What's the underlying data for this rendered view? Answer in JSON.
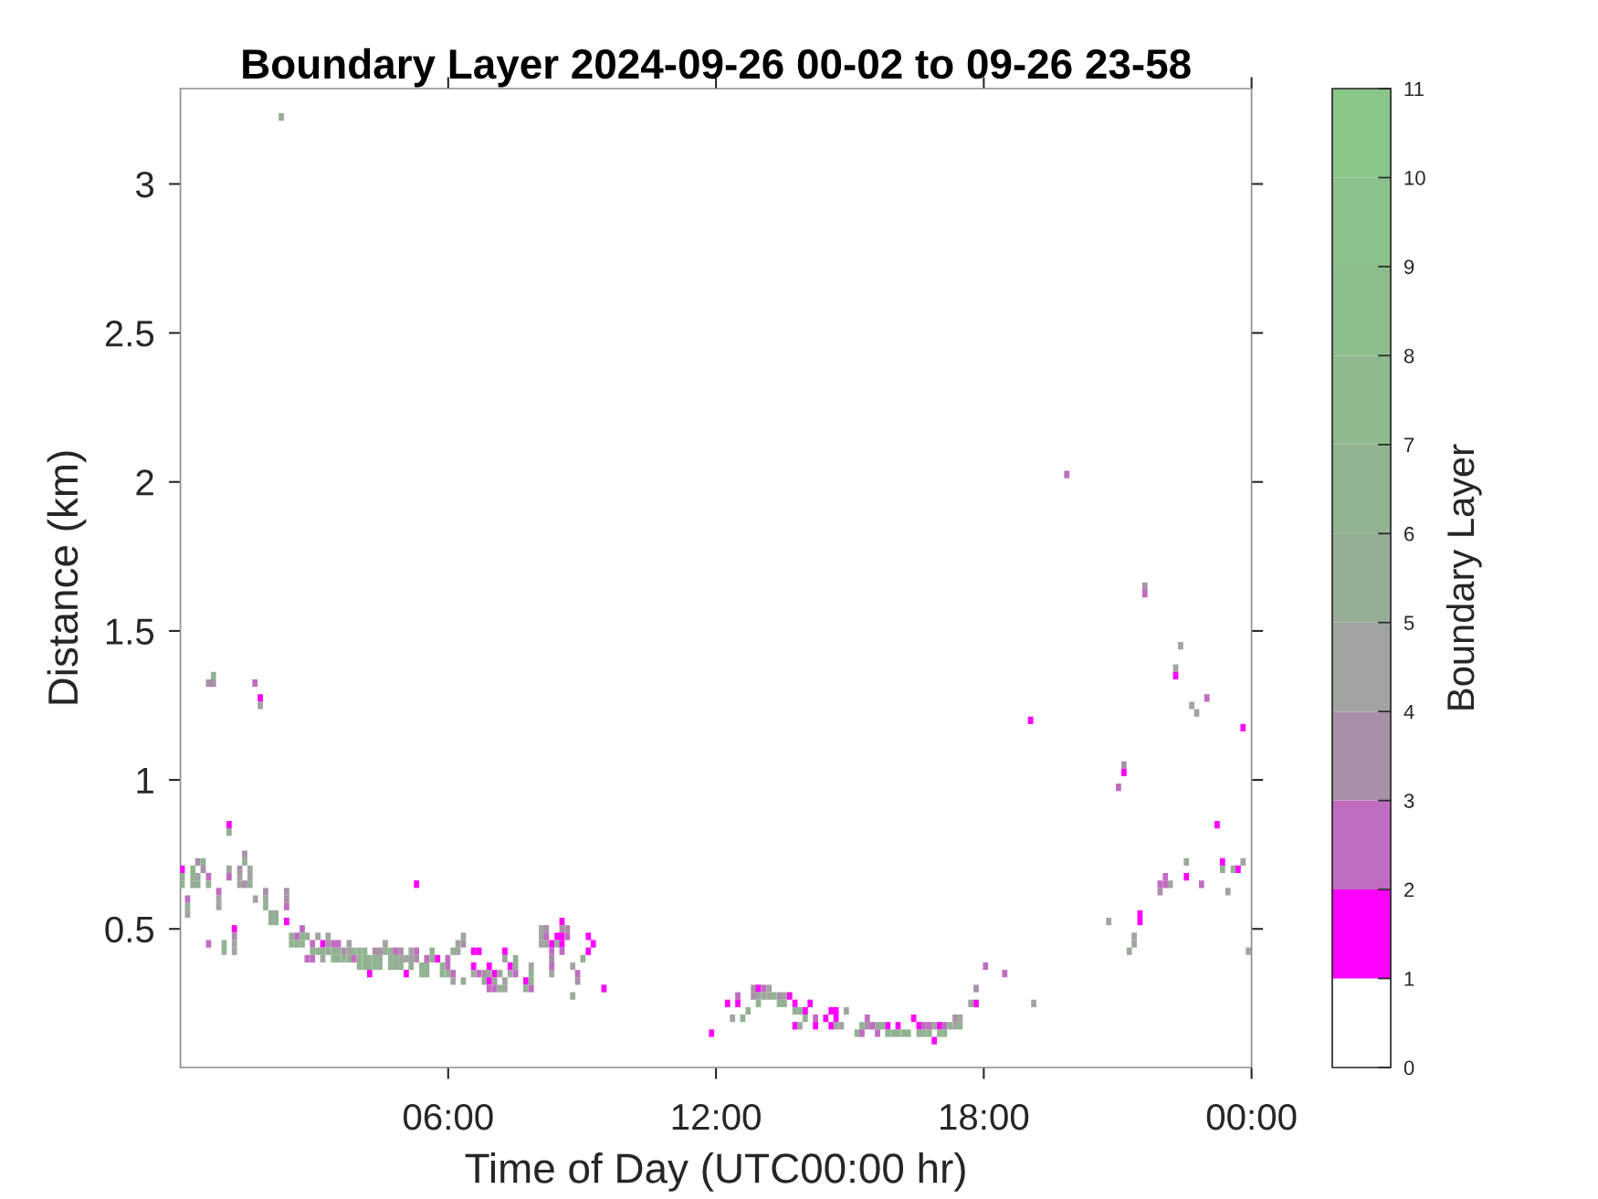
{
  "chart_data": {
    "type": "scatter",
    "title": "Boundary Layer 2024-09-26 00-02 to 09-26 23-58",
    "xlabel": "Time of Day (UTC00:00 hr)",
    "ylabel": "Distance (km)",
    "clabel": "Boundary Layer",
    "xlim": [
      0,
      24
    ],
    "xticks": [
      {
        "value": 6,
        "label": "06:00"
      },
      {
        "value": 12,
        "label": "12:00"
      },
      {
        "value": 18,
        "label": "18:00"
      },
      {
        "value": 24,
        "label": "00:00"
      }
    ],
    "ylim": [
      0.035,
      3.32
    ],
    "yticks": [
      0.5,
      1,
      1.5,
      2,
      2.5,
      3
    ],
    "clim": [
      0,
      11
    ],
    "cticks": [
      0,
      1,
      2,
      3,
      4,
      5,
      6,
      7,
      8,
      9,
      10,
      11
    ],
    "marker": "square",
    "grid": false,
    "x": [
      2.26,
      0.74,
      0.63,
      0.74,
      1.67,
      1.79,
      1.79,
      0.04,
      0.04,
      0.04,
      0.16,
      0.16,
      0.16,
      0.28,
      0.28,
      0.28,
      0.39,
      0.39,
      0.39,
      0.51,
      0.51,
      0.63,
      0.63,
      0.63,
      0.86,
      0.86,
      0.86,
      0.98,
      0.98,
      1.09,
      1.09,
      1.09,
      1.09,
      1.21,
      1.21,
      1.21,
      1.21,
      1.33,
      1.33,
      1.33,
      1.44,
      1.44,
      1.44,
      1.56,
      1.56,
      1.56,
      1.68,
      1.91,
      1.91,
      1.91,
      2.03,
      2.03,
      2.14,
      2.14,
      2.38,
      2.38,
      2.38,
      2.38,
      2.49,
      2.49,
      2.61,
      2.61,
      2.73,
      2.73,
      2.73,
      2.84,
      2.84,
      2.96,
      2.96,
      2.96,
      3.08,
      3.08,
      3.19,
      3.19,
      3.19,
      3.31,
      3.31,
      3.31,
      3.43,
      3.43,
      3.43,
      3.54,
      3.54,
      3.54,
      3.66,
      3.66,
      3.78,
      3.78,
      3.78,
      3.89,
      3.89,
      4.01,
      4.01,
      4.01,
      4.13,
      4.13,
      4.13,
      4.24,
      4.24,
      4.24,
      4.36,
      4.36,
      4.36,
      4.47,
      4.47,
      4.47,
      4.59,
      4.59,
      4.71,
      4.71,
      4.71,
      4.82,
      4.82,
      4.82,
      4.94,
      4.94,
      4.94,
      5.06,
      5.06,
      5.17,
      5.17,
      5.17,
      5.29,
      5.29,
      5.29,
      5.41,
      5.41,
      5.52,
      5.52,
      5.52,
      5.64,
      5.64,
      5.76,
      5.87,
      5.87,
      5.99,
      5.99,
      5.99,
      6.11,
      6.11,
      6.11,
      6.22,
      6.22,
      6.34,
      6.34,
      6.34,
      6.57,
      6.57,
      6.57,
      6.69,
      6.69,
      6.81,
      6.81,
      6.92,
      6.92,
      6.92,
      6.92,
      7.04,
      7.04,
      7.04,
      7.16,
      7.16,
      7.27,
      7.27,
      7.27,
      7.27,
      7.39,
      7.39,
      7.51,
      7.51,
      7.51,
      7.74,
      7.74,
      7.86,
      7.86,
      7.86,
      7.86,
      8.09,
      8.09,
      8.09,
      8.2,
      8.2,
      8.2,
      8.32,
      8.32,
      8.32,
      8.32,
      8.32,
      8.44,
      8.44,
      8.55,
      8.55,
      8.55,
      8.55,
      8.55,
      8.67,
      8.67,
      8.79,
      8.79,
      8.9,
      8.9,
      9.02,
      9.14,
      9.14,
      9.25,
      9.49,
      11.9,
      12.26,
      12.37,
      12.49,
      12.49,
      12.6,
      12.72,
      12.84,
      12.84,
      12.95,
      12.95,
      12.95,
      13.07,
      13.07,
      13.19,
      13.19,
      13.3,
      13.42,
      13.42,
      13.53,
      13.53,
      13.65,
      13.77,
      13.77,
      13.77,
      13.88,
      13.88,
      14.0,
      14.0,
      14.11,
      14.23,
      14.23,
      14.46,
      14.58,
      14.58,
      14.69,
      14.69,
      14.69,
      14.81,
      14.92,
      15.16,
      15.27,
      15.27,
      15.39,
      15.39,
      15.5,
      15.62,
      15.62,
      15.73,
      15.85,
      15.85,
      15.97,
      16.08,
      16.08,
      16.2,
      16.31,
      16.43,
      16.55,
      16.55,
      16.66,
      16.66,
      16.78,
      16.78,
      16.89,
      16.89,
      17.01,
      17.01,
      17.12,
      17.12,
      17.24,
      17.36,
      17.36,
      17.47,
      17.47,
      17.71,
      17.83,
      17.83,
      18.04,
      18.47,
      19.12,
      19.86,
      21.61,
      21.61,
      22.41,
      22.3,
      22.3,
      23.0,
      22.66,
      22.77,
      19.05,
      23.81,
      21.14,
      21.14,
      21.02,
      23.23,
      22.54,
      22.54,
      23.35,
      23.35,
      23.59,
      23.7,
      23.81,
      22.07,
      22.07,
      21.95,
      22.18,
      21.95,
      22.88,
      23.47,
      20.8,
      21.5,
      21.5,
      21.37,
      21.37,
      21.26,
      23.93
    ],
    "values": [
      3.225,
      1.35,
      1.325,
      1.325,
      1.325,
      1.275,
      1.25,
      0.7,
      0.675,
      0.65,
      0.6,
      0.575,
      0.55,
      0.7,
      0.675,
      0.65,
      0.725,
      0.675,
      0.65,
      0.725,
      0.7,
      0.675,
      0.65,
      0.45,
      0.625,
      0.6,
      0.575,
      0.45,
      0.425,
      0.85,
      0.825,
      0.7,
      0.675,
      0.5,
      0.475,
      0.45,
      0.425,
      0.7,
      0.675,
      0.65,
      0.75,
      0.725,
      0.65,
      0.7,
      0.675,
      0.65,
      0.6,
      0.625,
      0.6,
      0.575,
      0.55,
      0.525,
      0.55,
      0.525,
      0.625,
      0.6,
      0.575,
      0.525,
      0.475,
      0.45,
      0.475,
      0.45,
      0.5,
      0.475,
      0.45,
      0.475,
      0.4,
      0.45,
      0.425,
      0.4,
      0.475,
      0.425,
      0.45,
      0.425,
      0.4,
      0.475,
      0.45,
      0.425,
      0.45,
      0.425,
      0.4,
      0.45,
      0.425,
      0.4,
      0.425,
      0.4,
      0.45,
      0.425,
      0.4,
      0.425,
      0.4,
      0.425,
      0.4,
      0.375,
      0.425,
      0.4,
      0.375,
      0.4,
      0.375,
      0.35,
      0.425,
      0.4,
      0.375,
      0.425,
      0.4,
      0.375,
      0.45,
      0.425,
      0.425,
      0.4,
      0.375,
      0.425,
      0.4,
      0.375,
      0.425,
      0.4,
      0.375,
      0.4,
      0.35,
      0.425,
      0.4,
      0.375,
      0.65,
      0.425,
      0.4,
      0.375,
      0.35,
      0.4,
      0.375,
      0.35,
      0.425,
      0.4,
      0.4,
      0.375,
      0.35,
      0.4,
      0.375,
      0.35,
      0.425,
      0.35,
      0.325,
      0.45,
      0.425,
      0.475,
      0.45,
      0.325,
      0.425,
      0.375,
      0.35,
      0.425,
      0.35,
      0.35,
      0.325,
      0.375,
      0.35,
      0.325,
      0.3,
      0.35,
      0.325,
      0.3,
      0.35,
      0.3,
      0.425,
      0.4,
      0.325,
      0.3,
      0.375,
      0.35,
      0.4,
      0.375,
      0.35,
      0.325,
      0.3,
      0.375,
      0.35,
      0.325,
      0.3,
      0.5,
      0.475,
      0.45,
      0.5,
      0.475,
      0.45,
      0.45,
      0.425,
      0.4,
      0.375,
      0.35,
      0.475,
      0.45,
      0.525,
      0.5,
      0.475,
      0.45,
      0.425,
      0.5,
      0.475,
      0.375,
      0.275,
      0.35,
      0.325,
      0.4,
      0.475,
      0.425,
      0.45,
      0.3,
      0.15,
      0.25,
      0.2,
      0.275,
      0.25,
      0.2,
      0.225,
      0.3,
      0.275,
      0.3,
      0.275,
      0.25,
      0.3,
      0.275,
      0.3,
      0.275,
      0.275,
      0.275,
      0.25,
      0.275,
      0.25,
      0.275,
      0.25,
      0.225,
      0.175,
      0.225,
      0.175,
      0.225,
      0.2,
      0.25,
      0.2,
      0.175,
      0.2,
      0.225,
      0.175,
      0.225,
      0.2,
      0.175,
      0.175,
      0.225,
      0.15,
      0.175,
      0.15,
      0.2,
      0.175,
      0.175,
      0.175,
      0.15,
      0.175,
      0.175,
      0.15,
      0.15,
      0.175,
      0.15,
      0.15,
      0.15,
      0.2,
      0.175,
      0.15,
      0.175,
      0.15,
      0.175,
      0.15,
      0.175,
      0.125,
      0.175,
      0.15,
      0.175,
      0.15,
      0.175,
      0.2,
      0.175,
      0.2,
      0.175,
      0.25,
      0.3,
      0.25,
      0.375,
      0.35,
      0.25,
      2.025,
      1.65,
      1.625,
      1.45,
      1.375,
      1.35,
      1.275,
      1.25,
      1.225,
      1.2,
      1.175,
      1.05,
      1.025,
      0.975,
      0.85,
      0.725,
      0.675,
      0.725,
      0.7,
      0.7,
      0.7,
      0.725,
      0.675,
      0.65,
      0.65,
      0.65,
      0.625,
      0.65,
      0.625,
      0.525,
      0.55,
      0.525,
      0.475,
      0.45,
      0.425,
      0.425
    ],
    "cvalues": [
      5.5,
      6.5,
      3.5,
      3.5,
      2.5,
      1.5,
      4.5,
      1.5,
      6.5,
      6.5,
      2.5,
      6.5,
      4.5,
      6.5,
      6.5,
      5.5,
      3.5,
      4.5,
      5.5,
      6.5,
      3.5,
      2.5,
      6.5,
      2.5,
      2.5,
      4.5,
      4.5,
      6.5,
      6.5,
      1.5,
      5.5,
      4.5,
      2.5,
      1.5,
      3.5,
      4.5,
      4.5,
      3.5,
      4.5,
      4.5,
      3.5,
      5.5,
      3.5,
      4.5,
      4.5,
      5.5,
      4.5,
      3.5,
      5.5,
      6.5,
      5.5,
      5.5,
      5.5,
      5.5,
      3.5,
      3.5,
      2.5,
      1.5,
      6.5,
      6.5,
      2.5,
      6.5,
      2.5,
      6.5,
      6.5,
      5.5,
      2.5,
      2.5,
      6.5,
      2.5,
      4.5,
      6.5,
      1.5,
      6.5,
      4.5,
      4.5,
      3.5,
      5.5,
      2.5,
      6.5,
      6.5,
      2.5,
      5.5,
      6.5,
      3.5,
      6.5,
      4.5,
      4.5,
      5.5,
      6.5,
      2.5,
      6.5,
      6.5,
      6.5,
      6.5,
      6.5,
      6.5,
      6.5,
      6.5,
      1.5,
      3.5,
      6.5,
      6.5,
      3.5,
      5.5,
      6.5,
      4.5,
      5.5,
      6.5,
      6.5,
      6.5,
      2.5,
      6.5,
      5.5,
      3.5,
      4.5,
      6.5,
      4.5,
      1.5,
      4.5,
      4.5,
      5.5,
      1.5,
      2.5,
      3.5,
      6.5,
      6.5,
      2.5,
      6.5,
      6.5,
      6.5,
      5.5,
      1.5,
      6.5,
      6.5,
      2.5,
      2.5,
      6.5,
      5.5,
      2.5,
      4.5,
      4.5,
      4.5,
      4.5,
      3.5,
      5.5,
      1.5,
      1.5,
      4.5,
      1.5,
      2.5,
      3.5,
      4.5,
      1.5,
      4.5,
      1.5,
      2.5,
      1.5,
      4.5,
      2.5,
      4.5,
      6.5,
      1.5,
      4.5,
      4.5,
      4.5,
      1.5,
      4.5,
      5.5,
      5.5,
      2.5,
      1.5,
      6.5,
      4.5,
      6.5,
      6.5,
      2.5,
      4.5,
      4.5,
      4.5,
      3.5,
      2.5,
      4.5,
      1.5,
      2.5,
      3.5,
      2.5,
      4.5,
      1.5,
      6.5,
      1.5,
      3.5,
      1.5,
      1.5,
      2.5,
      3.5,
      2.5,
      4.5,
      5.5,
      2.5,
      3.5,
      6.5,
      1.5,
      1.5,
      1.5,
      1.5,
      1.5,
      1.5,
      4.5,
      2.5,
      1.5,
      6.5,
      6.5,
      3.5,
      3.5,
      1.5,
      4.5,
      6.5,
      2.5,
      5.5,
      4.5,
      4.5,
      6.5,
      3.5,
      6.5,
      4.5,
      5.5,
      1.5,
      1.5,
      5.5,
      1.5,
      6.5,
      4.5,
      1.5,
      6.5,
      1.5,
      2.5,
      1.5,
      1.5,
      1.5,
      1.5,
      1.5,
      1.5,
      4.5,
      4.5,
      4.5,
      6.5,
      6.5,
      2.5,
      2.5,
      3.5,
      2.5,
      4.5,
      2.5,
      6.5,
      1.5,
      6.5,
      6.5,
      1.5,
      6.5,
      6.5,
      6.5,
      1.5,
      1.5,
      5.5,
      2.5,
      6.5,
      2.5,
      6.5,
      4.5,
      1.5,
      1.5,
      6.5,
      2.5,
      6.5,
      6.5,
      3.5,
      4.5,
      4.5,
      6.5,
      4.5,
      3.5,
      1.5,
      2.5,
      2.5,
      4.5,
      2.5,
      3.5,
      2.5,
      4.5,
      4.5,
      1.5,
      2.5,
      4.5,
      4.5,
      1.5,
      1.5,
      3.5,
      1.5,
      2.5,
      1.5,
      5.5,
      1.5,
      1.5,
      6.5,
      5.5,
      1.5,
      4.5,
      2.5,
      2.5,
      2.5,
      4.5,
      3.5,
      2.5,
      4.5,
      4.5,
      1.5,
      1.5,
      4.5,
      4.5,
      5.5,
      4.5
    ]
  }
}
